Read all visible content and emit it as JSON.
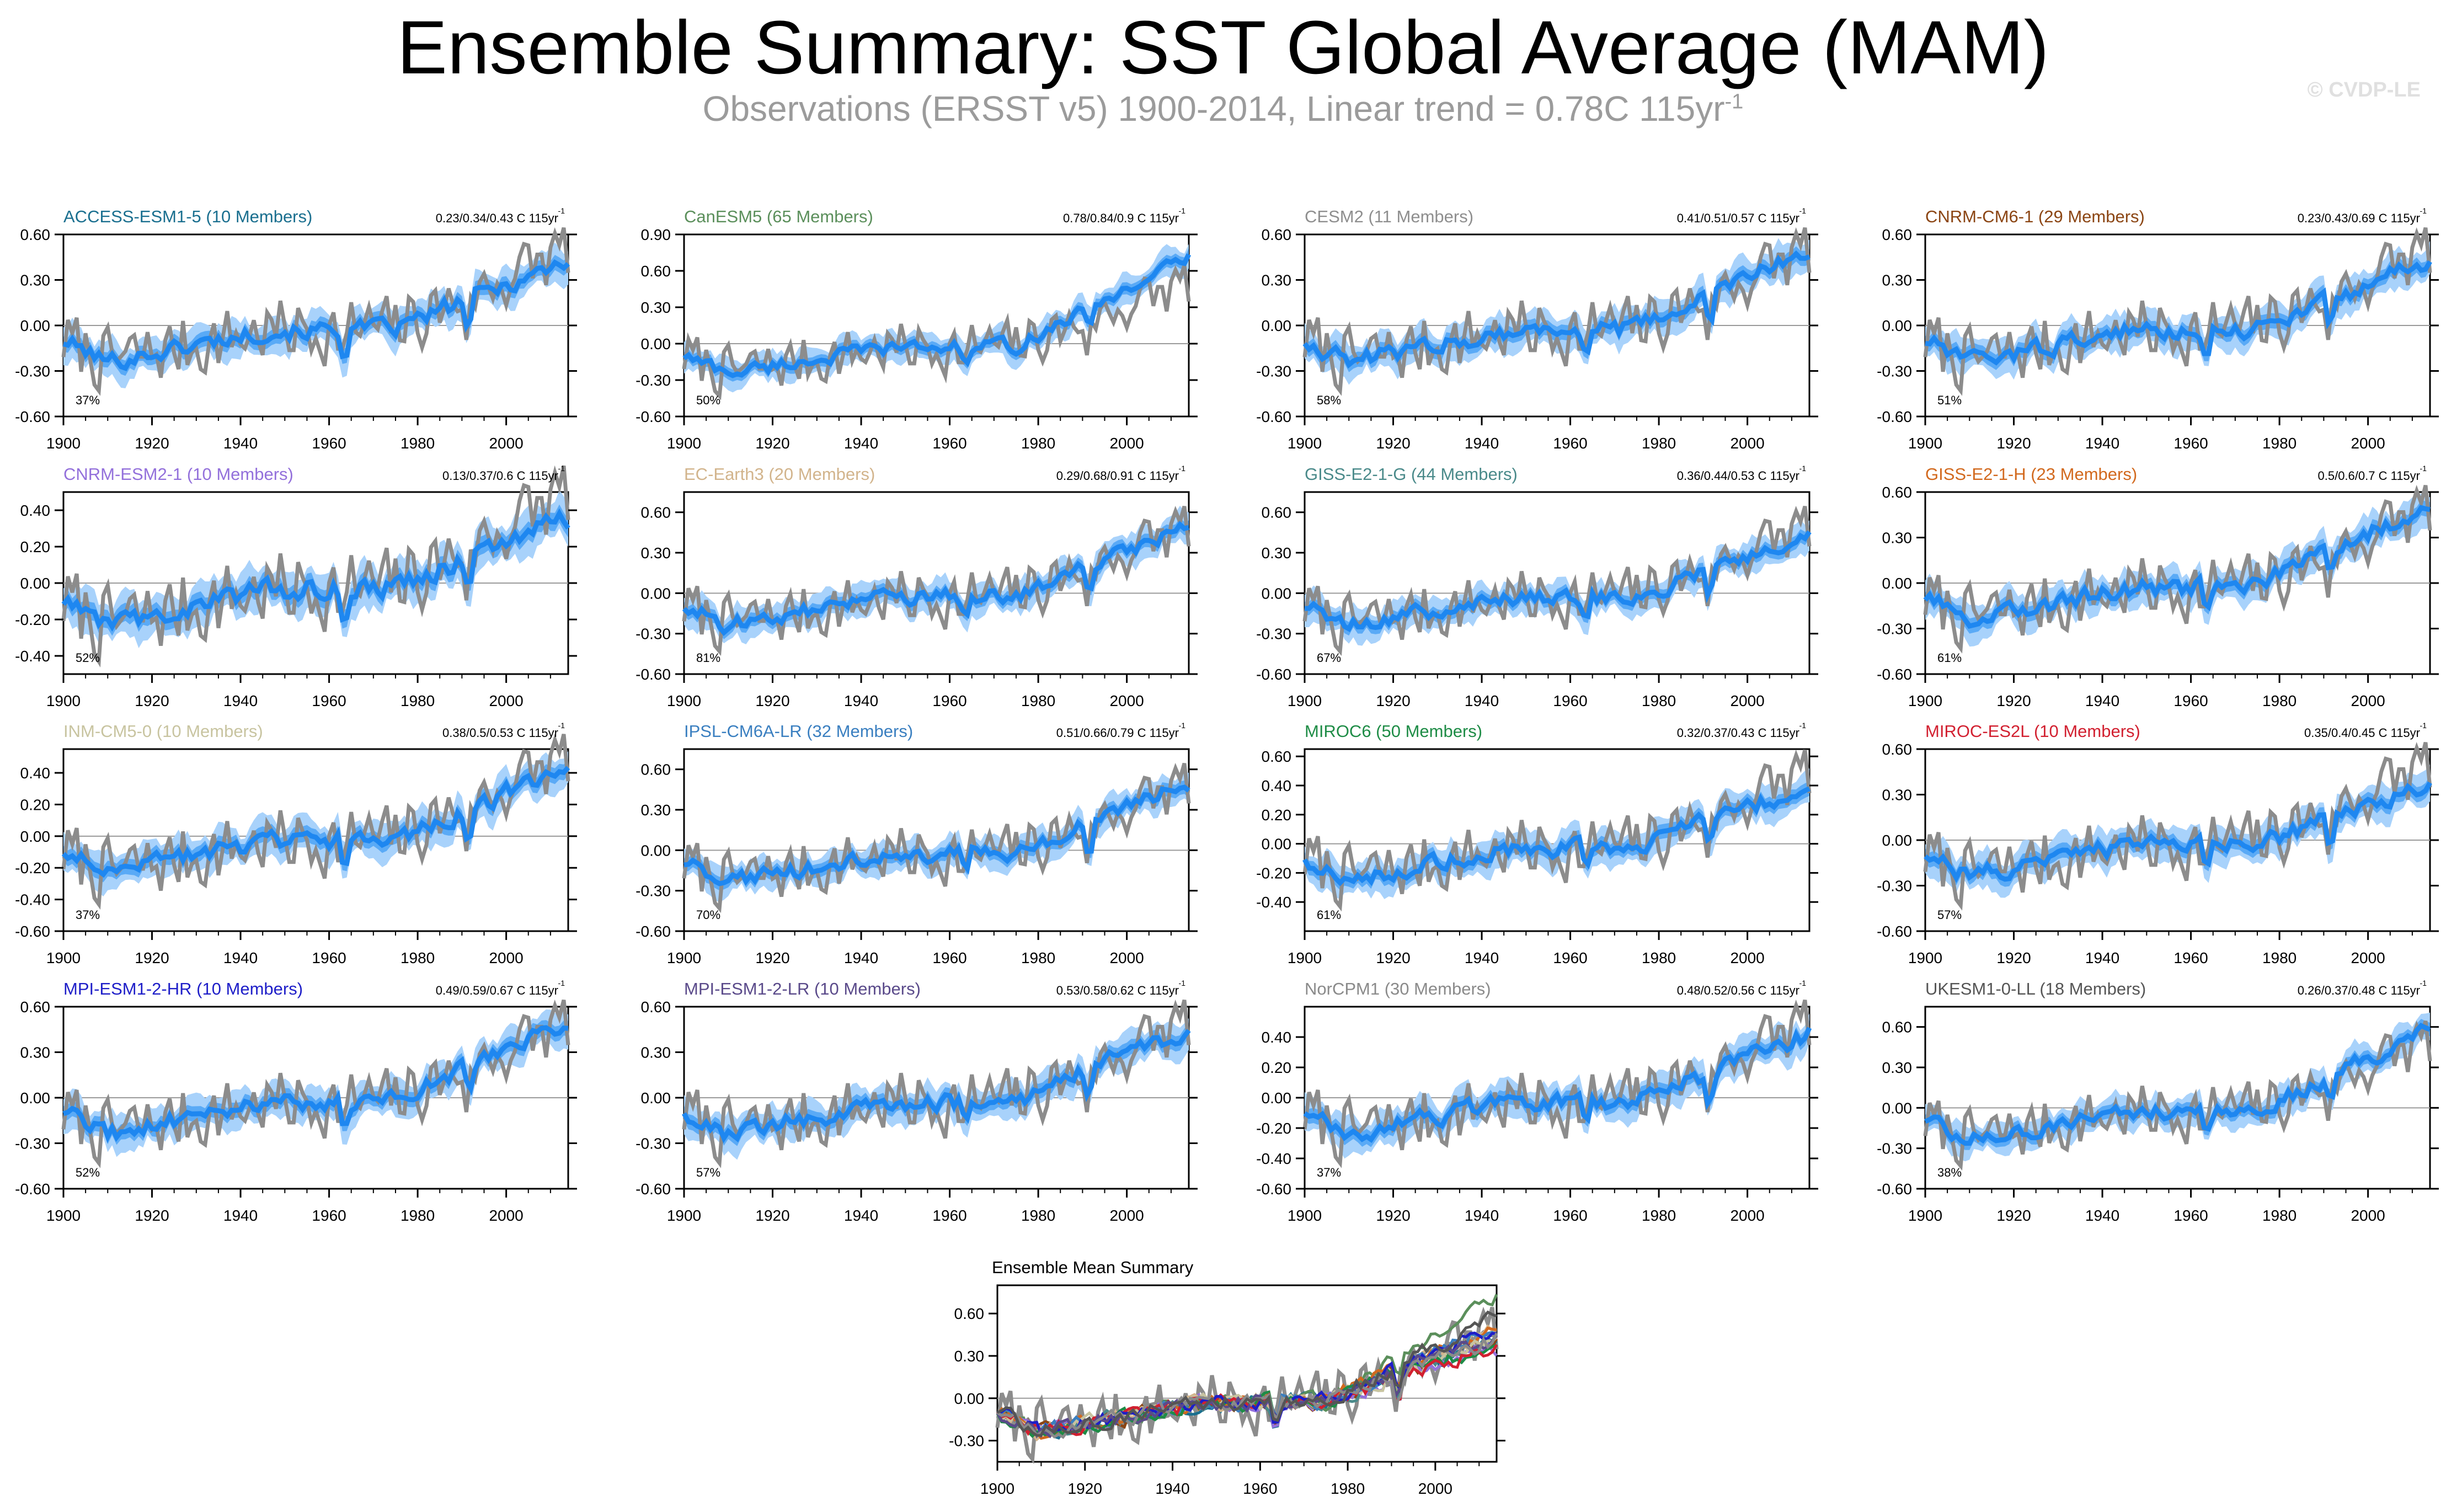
{
  "header": {
    "title": "Ensemble Summary: SST Global Average (MAM)",
    "subtitle": "Observations (ERSST v5) 1900-2014, Linear trend = 0.78C 115yr",
    "subtitle_sup": "-1",
    "copyright": "© CVDP-LE"
  },
  "colors": {
    "ensemble_mean": "#1e87f0",
    "ensemble_band": "#a8d2fb",
    "observations": "#8c8c8c",
    "zero_line": "#9a9a9a"
  },
  "chart_data": [
    {
      "type": "line",
      "title": "ACCESS-ESM1-5 (10 Members)",
      "title_color": "#1a6f8f",
      "trend_label": "0.23/0.34/0.43 C 115yr",
      "pct_label": "37%",
      "end": 0.43,
      "ylim": [
        -0.6,
        0.6
      ],
      "yticks": [
        0.6,
        0.3,
        0.0,
        -0.3,
        -0.6
      ],
      "ytick_labels": [
        "0.60",
        "0.30",
        "0.00",
        "-0.30",
        "-0.60"
      ],
      "xticks": [
        1900,
        1920,
        1940,
        1960,
        1980,
        2000
      ],
      "xlim": [
        1900,
        2014
      ]
    },
    {
      "type": "line",
      "title": "CanESM5 (65 Members)",
      "title_color": "#5b8f5b",
      "trend_label": "0.78/0.84/0.9 C 115yr",
      "pct_label": "50%",
      "end": 0.72,
      "ylim": [
        -0.6,
        0.9
      ],
      "yticks": [
        0.9,
        0.6,
        0.3,
        0.0,
        -0.3,
        -0.6
      ],
      "ytick_labels": [
        "0.90",
        "0.60",
        "0.30",
        "0.00",
        "-0.30",
        "-0.60"
      ],
      "xticks": [
        1900,
        1920,
        1940,
        1960,
        1980,
        2000
      ],
      "xlim": [
        1900,
        2014
      ]
    },
    {
      "type": "line",
      "title": "CESM2 (11 Members)",
      "title_color": "#8e8e8e",
      "trend_label": "0.41/0.51/0.57 C 115yr",
      "pct_label": "58%",
      "end": 0.5,
      "ylim": [
        -0.6,
        0.6
      ],
      "yticks": [
        0.6,
        0.3,
        0.0,
        -0.3,
        -0.6
      ],
      "ytick_labels": [
        "0.60",
        "0.30",
        "0.00",
        "-0.30",
        "-0.60"
      ],
      "xticks": [
        1900,
        1920,
        1940,
        1960,
        1980,
        2000
      ],
      "xlim": [
        1900,
        2014
      ]
    },
    {
      "type": "line",
      "title": "CNRM-CM6-1 (29 Members)",
      "title_color": "#8b4513",
      "trend_label": "0.23/0.43/0.69 C 115yr",
      "pct_label": "51%",
      "end": 0.43,
      "ylim": [
        -0.6,
        0.6
      ],
      "yticks": [
        0.6,
        0.3,
        0.0,
        -0.3,
        -0.6
      ],
      "ytick_labels": [
        "0.60",
        "0.30",
        "0.00",
        "-0.30",
        "-0.60"
      ],
      "xticks": [
        1900,
        1920,
        1940,
        1960,
        1980,
        2000
      ],
      "xlim": [
        1900,
        2014
      ]
    },
    {
      "type": "line",
      "title": "CNRM-ESM2-1 (10 Members)",
      "title_color": "#9370db",
      "trend_label": "0.13/0.37/0.6 C 115yr",
      "pct_label": "52%",
      "end": 0.35,
      "ylim": [
        -0.5,
        0.5
      ],
      "yticks": [
        0.4,
        0.2,
        0.0,
        -0.2,
        -0.4
      ],
      "ytick_labels": [
        "0.40",
        "0.20",
        "0.00",
        "-0.20",
        "-0.40"
      ],
      "xticks": [
        1900,
        1920,
        1940,
        1960,
        1980,
        2000
      ],
      "xlim": [
        1900,
        2014
      ]
    },
    {
      "type": "line",
      "title": "EC-Earth3 (20 Members)",
      "title_color": "#d2b48c",
      "trend_label": "0.29/0.68/0.91 C 115yr",
      "pct_label": "81%",
      "end": 0.5,
      "ylim": [
        -0.6,
        0.75
      ],
      "yticks": [
        0.6,
        0.3,
        0.0,
        -0.3,
        -0.6
      ],
      "ytick_labels": [
        "0.60",
        "0.30",
        "0.00",
        "-0.30",
        "-0.60"
      ],
      "xticks": [
        1900,
        1920,
        1940,
        1960,
        1980,
        2000
      ],
      "xlim": [
        1900,
        2014
      ]
    },
    {
      "type": "line",
      "title": "GISS-E2-1-G (44 Members)",
      "title_color": "#4a8a8a",
      "trend_label": "0.36/0.44/0.53 C 115yr",
      "pct_label": "67%",
      "end": 0.43,
      "ylim": [
        -0.6,
        0.75
      ],
      "yticks": [
        0.6,
        0.3,
        0.0,
        -0.3,
        -0.6
      ],
      "ytick_labels": [
        "0.60",
        "0.30",
        "0.00",
        "-0.30",
        "-0.60"
      ],
      "xticks": [
        1900,
        1920,
        1940,
        1960,
        1980,
        2000
      ],
      "xlim": [
        1900,
        2014
      ]
    },
    {
      "type": "line",
      "title": "GISS-E2-1-H (23 Members)",
      "title_color": "#d2691e",
      "trend_label": "0.5/0.6/0.7 C 115yr",
      "pct_label": "61%",
      "end": 0.52,
      "ylim": [
        -0.6,
        0.6
      ],
      "yticks": [
        0.6,
        0.3,
        0.0,
        -0.3,
        -0.6
      ],
      "ytick_labels": [
        "0.60",
        "0.30",
        "0.00",
        "-0.30",
        "-0.60"
      ],
      "xticks": [
        1900,
        1920,
        1940,
        1960,
        1980,
        2000
      ],
      "xlim": [
        1900,
        2014
      ]
    },
    {
      "type": "line",
      "title": "INM-CM5-0 (10 Members)",
      "title_color": "#c8c4a0",
      "trend_label": "0.38/0.5/0.53 C 115yr",
      "pct_label": "37%",
      "end": 0.43,
      "ylim": [
        -0.6,
        0.55
      ],
      "yticks": [
        0.4,
        0.2,
        0.0,
        -0.2,
        -0.4,
        -0.6
      ],
      "ytick_labels": [
        "0.40",
        "0.20",
        "0.00",
        "-0.20",
        "-0.40",
        "-0.60"
      ],
      "xticks": [
        1900,
        1920,
        1940,
        1960,
        1980,
        2000
      ],
      "xlim": [
        1900,
        2014
      ]
    },
    {
      "type": "line",
      "title": "IPSL-CM6A-LR (32 Members)",
      "title_color": "#3a7fc0",
      "trend_label": "0.51/0.66/0.79 C 115yr",
      "pct_label": "70%",
      "end": 0.5,
      "ylim": [
        -0.6,
        0.75
      ],
      "yticks": [
        0.6,
        0.3,
        0.0,
        -0.3,
        -0.6
      ],
      "ytick_labels": [
        "0.60",
        "0.30",
        "0.00",
        "-0.30",
        "-0.60"
      ],
      "xticks": [
        1900,
        1920,
        1940,
        1960,
        1980,
        2000
      ],
      "xlim": [
        1900,
        2014
      ]
    },
    {
      "type": "line",
      "title": "MIROC6 (50 Members)",
      "title_color": "#1e8c46",
      "trend_label": "0.32/0.37/0.43 C 115yr",
      "pct_label": "61%",
      "end": 0.4,
      "ylim": [
        -0.6,
        0.65
      ],
      "yticks": [
        0.6,
        0.4,
        0.2,
        0.0,
        -0.2,
        -0.4
      ],
      "ytick_labels": [
        "0.60",
        "0.40",
        "0.20",
        "0.00",
        "-0.20",
        "-0.40"
      ],
      "xticks": [
        1900,
        1920,
        1940,
        1960,
        1980,
        2000
      ],
      "xlim": [
        1900,
        2014
      ]
    },
    {
      "type": "line",
      "title": "MIROC-ES2L (10 Members)",
      "title_color": "#d22030",
      "trend_label": "0.35/0.4/0.45 C 115yr",
      "pct_label": "57%",
      "end": 0.36,
      "ylim": [
        -0.6,
        0.6
      ],
      "yticks": [
        0.6,
        0.3,
        0.0,
        -0.3,
        -0.6
      ],
      "ytick_labels": [
        "0.60",
        "0.30",
        "0.00",
        "-0.30",
        "-0.60"
      ],
      "xticks": [
        1900,
        1920,
        1940,
        1960,
        1980,
        2000
      ],
      "xlim": [
        1900,
        2014
      ]
    },
    {
      "type": "line",
      "title": "MPI-ESM1-2-HR (10 Members)",
      "title_color": "#1e1ec8",
      "trend_label": "0.49/0.59/0.67 C 115yr",
      "pct_label": "52%",
      "end": 0.5,
      "ylim": [
        -0.6,
        0.6
      ],
      "yticks": [
        0.6,
        0.3,
        0.0,
        -0.3,
        -0.6
      ],
      "ytick_labels": [
        "0.60",
        "0.30",
        "0.00",
        "-0.30",
        "-0.60"
      ],
      "xticks": [
        1900,
        1920,
        1940,
        1960,
        1980,
        2000
      ],
      "xlim": [
        1900,
        2014
      ]
    },
    {
      "type": "line",
      "title": "MPI-ESM1-2-LR (10 Members)",
      "title_color": "#5a4a8a",
      "trend_label": "0.53/0.58/0.62 C 115yr",
      "pct_label": "57%",
      "end": 0.45,
      "ylim": [
        -0.6,
        0.6
      ],
      "yticks": [
        0.6,
        0.3,
        0.0,
        -0.3,
        -0.6
      ],
      "ytick_labels": [
        "0.60",
        "0.30",
        "0.00",
        "-0.30",
        "-0.60"
      ],
      "xticks": [
        1900,
        1920,
        1940,
        1960,
        1980,
        2000
      ],
      "xlim": [
        1900,
        2014
      ]
    },
    {
      "type": "line",
      "title": "NorCPM1 (30 Members)",
      "title_color": "#8a8a8a",
      "trend_label": "0.48/0.52/0.56 C 115yr",
      "pct_label": "37%",
      "end": 0.42,
      "ylim": [
        -0.6,
        0.6
      ],
      "yticks": [
        0.4,
        0.2,
        0.0,
        -0.2,
        -0.4,
        -0.6
      ],
      "ytick_labels": [
        "0.40",
        "0.20",
        "0.00",
        "-0.20",
        "-0.40",
        "-0.60"
      ],
      "xticks": [
        1900,
        1920,
        1940,
        1960,
        1980,
        2000
      ],
      "xlim": [
        1900,
        2014
      ]
    },
    {
      "type": "line",
      "title": "UKESM1-0-LL (18 Members)",
      "title_color": "#555555",
      "trend_label": "0.26/0.37/0.48 C 115yr",
      "pct_label": "38%",
      "end": 0.58,
      "ylim": [
        -0.6,
        0.75
      ],
      "yticks": [
        0.6,
        0.3,
        0.0,
        -0.3,
        -0.6
      ],
      "ytick_labels": [
        "0.60",
        "0.30",
        "0.00",
        "-0.30",
        "-0.60"
      ],
      "xticks": [
        1900,
        1920,
        1940,
        1960,
        1980,
        2000
      ],
      "xlim": [
        1900,
        2014
      ]
    },
    {
      "type": "line",
      "title": "Ensemble Mean Summary",
      "title_color": "#000000",
      "trend_label": "",
      "pct_label": "",
      "end": 0.5,
      "summary": true,
      "ylim": [
        -0.45,
        0.8
      ],
      "yticks": [
        0.6,
        0.3,
        0.0,
        -0.3
      ],
      "ytick_labels": [
        "0.60",
        "0.30",
        "0.00",
        "-0.30"
      ],
      "xticks": [
        1900,
        1920,
        1940,
        1960,
        1980,
        2000
      ],
      "xlim": [
        1900,
        2014
      ]
    }
  ]
}
